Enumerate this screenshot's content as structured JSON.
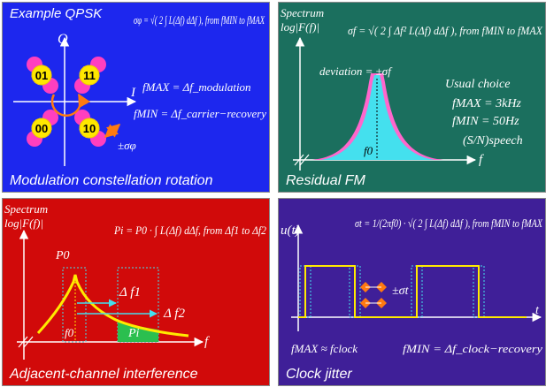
{
  "colors": {
    "qpsk_bg": "#1d27ee",
    "fm_bg": "#1b6f5e",
    "aci_bg": "#d10a0a",
    "jitter_bg": "#3f1f98",
    "constellation_point": "#ff3fbf",
    "symbol_fill": "#ffe800",
    "spectrum_magenta": "#ff66cc",
    "spectrum_cyan": "#44e0ee",
    "curve_yellow": "#ffea00",
    "arrow_orange": "#ff7a10"
  },
  "qpsk": {
    "title": "Example QPSK",
    "axis_q": "Q",
    "axis_i": "I",
    "formula_sigma": "σφ = √( 2 ∫ L(Δf) dΔf ), from fMIN to fMAX",
    "formula_fmax": "fMAX = Δf_modulation",
    "formula_fmin": "fMIN = Δf_carrier−recovery",
    "label_sigma_phi": "±σφ",
    "symbols": [
      "01",
      "11",
      "00",
      "10"
    ],
    "caption": "Modulation constellation rotation"
  },
  "fm": {
    "axis_title": "Spectrum",
    "axis_ylabel": "log|F(f)|",
    "formula_sigma": "σf = √( 2 ∫ Δf² L(Δf) dΔf ), from fMIN to fMAX",
    "deviation_label": "deviation = ±σf",
    "usual_choice": "Usual  choice",
    "fmax_value": "fMAX = 3kHz",
    "fmin_value": "fMIN = 50Hz",
    "sn_label": "(S/N)speech",
    "f0_label": "f0",
    "f_axis": "f",
    "caption": "Residual FM"
  },
  "aci": {
    "axis_title": "Spectrum",
    "axis_ylabel": "log|F(f)|",
    "formula": "Pi = P0 · ∫ L(Δf) dΔf, from Δf1 to Δf2",
    "p0_label": "P0",
    "df1_label": "Δ f1",
    "df2_label": "Δ f2",
    "pi_label": "Pi",
    "f0_label": "f0",
    "f_axis": "f",
    "caption": "Adjacent-channel interference"
  },
  "jitter": {
    "axis_ylabel": "u(t)",
    "formula": "σt = 1/(2πf0) · √( 2 ∫ L(Δf) dΔf ), from fMIN to fMAX",
    "sigma_t_label": "±σt",
    "t_axis": "t",
    "fmax_clock": "fMAX ≈ fclock",
    "fmin_clock": "fMIN = Δf_clock−recovery",
    "caption": "Clock jitter"
  }
}
